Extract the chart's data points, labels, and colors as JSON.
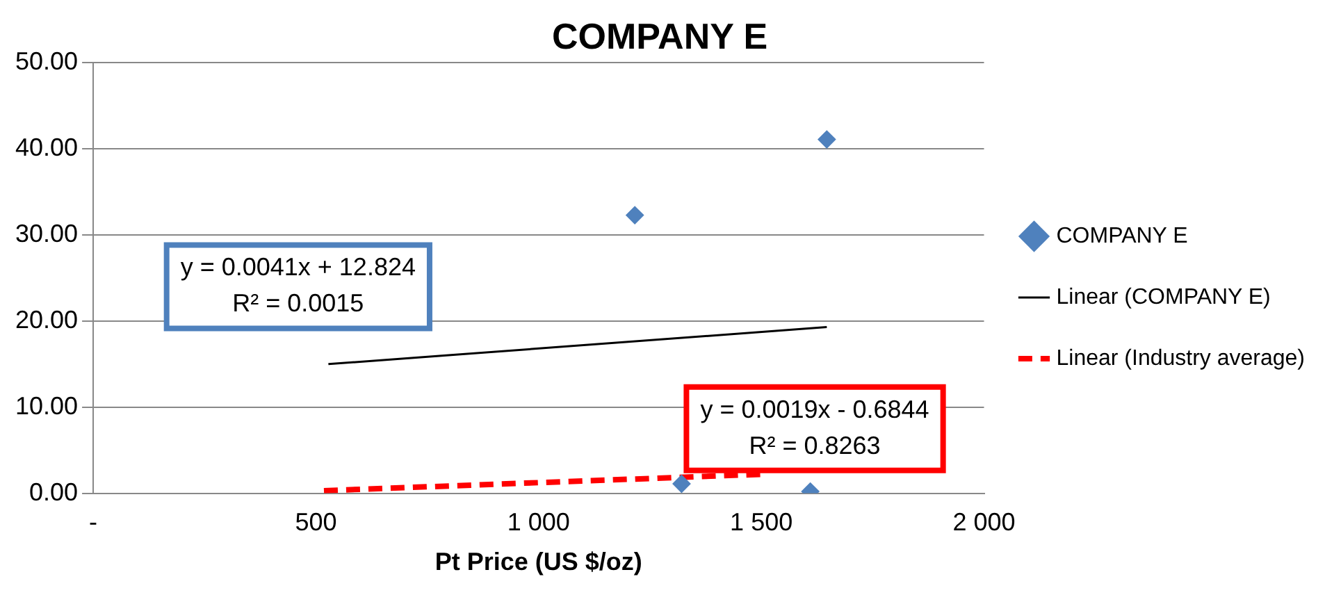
{
  "chart_data": {
    "type": "scatter",
    "title": "COMPANY E",
    "xlabel": "Pt Price (US $/oz)",
    "x": [
      1216,
      1647,
      1321,
      1610
    ],
    "series": [
      {
        "name": "COMPANY E",
        "type": "scatter",
        "color": "#4f81bd",
        "marker": "diamond",
        "values": [
          32.3,
          41.1,
          1.1,
          0.2
        ]
      },
      {
        "name": "Linear (COMPANY E)",
        "type": "line",
        "color": "#000000",
        "line_style": "solid",
        "marker": "none",
        "x": [
          528,
          1647
        ],
        "values": [
          15.0,
          19.3
        ]
      },
      {
        "name": "Linear (Industry average)",
        "type": "line",
        "color": "#ff0000",
        "line_style": "dashed",
        "marker": "none",
        "x": [
          518,
          1500
        ],
        "values": [
          0.3,
          2.2
        ]
      }
    ],
    "annotations": [
      "y = 0.0041x + 12.824",
      "R² = 0.0015",
      "y = 0.0019x - 0.6844",
      "R² = 0.8263"
    ],
    "xlim": [
      0,
      2000
    ],
    "xticks": [
      {
        "value": 0,
        "label": "-"
      },
      500,
      {
        "value": 1000,
        "label": "1 000"
      },
      {
        "value": 1500,
        "label": "1 500"
      },
      {
        "value": 2000,
        "label": "2 000"
      }
    ],
    "ylim": [
      0,
      50
    ],
    "yticks": [
      {
        "value": 0,
        "label": "0.00"
      },
      {
        "value": 10,
        "label": "10.00"
      },
      {
        "value": 20,
        "label": "20.00"
      },
      {
        "value": 30,
        "label": "30.00"
      },
      {
        "value": 40,
        "label": "40.00"
      },
      {
        "value": 50,
        "label": "50.00"
      }
    ],
    "grid": "y",
    "legend": "right"
  }
}
